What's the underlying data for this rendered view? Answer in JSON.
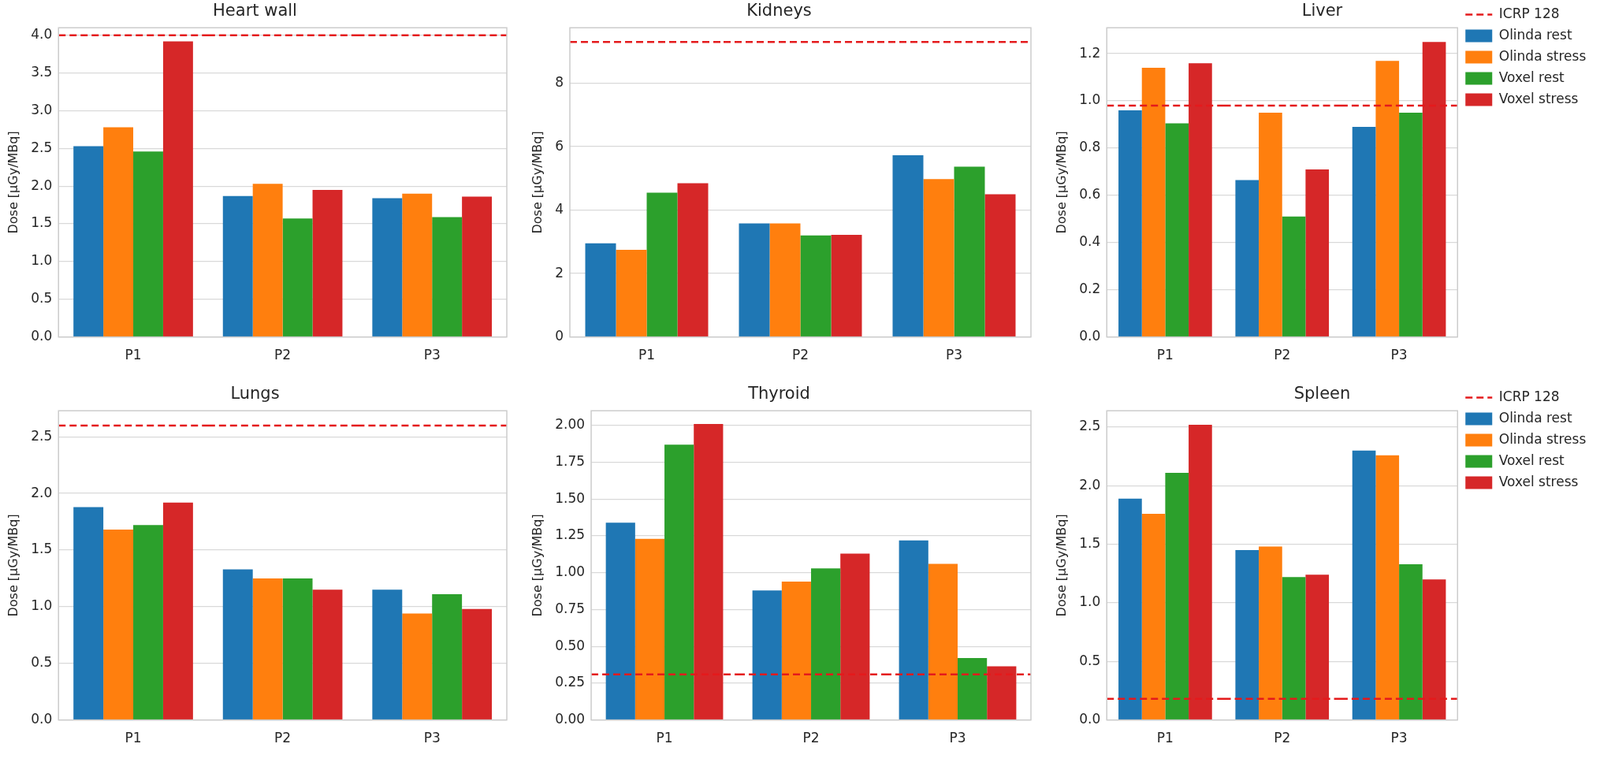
{
  "chart_data": [
    {
      "type": "bar",
      "title": "Heart wall",
      "y_label": "Dose [µGy/MBq]",
      "categories": [
        "P1",
        "P2",
        "P3"
      ],
      "series": [
        {
          "name": "ICRP 128",
          "type": "line",
          "line_style": "dashed",
          "color": "#e41a1c",
          "values": [
            4.0,
            4.0,
            4.0
          ]
        },
        {
          "name": "Olinda rest",
          "color": "#1f77b4",
          "values": [
            2.53,
            1.87,
            1.84
          ]
        },
        {
          "name": "Olinda stress",
          "color": "#ff7f0e",
          "values": [
            2.78,
            2.03,
            1.9
          ]
        },
        {
          "name": "Voxel rest",
          "color": "#2ca02c",
          "values": [
            2.46,
            1.57,
            1.59
          ]
        },
        {
          "name": "Voxel stress",
          "color": "#d62728",
          "values": [
            3.92,
            1.95,
            1.86
          ]
        }
      ],
      "ylim": [
        0,
        4.1
      ],
      "yticks": [
        {
          "value": 0,
          "label": "0.0"
        },
        {
          "value": 0.5,
          "label": "0.5"
        },
        {
          "value": 1,
          "label": "1.0"
        },
        {
          "value": 1.5,
          "label": "1.5"
        },
        {
          "value": 2,
          "label": "2.0"
        },
        {
          "value": 2.5,
          "label": "2.5"
        },
        {
          "value": 3,
          "label": "3.0"
        },
        {
          "value": 3.5,
          "label": "3.5"
        },
        {
          "value": 4,
          "label": "4.0"
        }
      ],
      "grid": true
    },
    {
      "type": "bar",
      "title": "Kidneys",
      "y_label": "Dose [µGy/MBq]",
      "categories": [
        "P1",
        "P2",
        "P3"
      ],
      "series": [
        {
          "name": "ICRP 128",
          "type": "line",
          "line_style": "dashed",
          "color": "#e41a1c",
          "values": [
            9.3,
            9.3,
            9.3
          ]
        },
        {
          "name": "Olinda rest",
          "color": "#1f77b4",
          "values": [
            2.95,
            3.58,
            5.73
          ]
        },
        {
          "name": "Olinda stress",
          "color": "#ff7f0e",
          "values": [
            2.75,
            3.58,
            4.98
          ]
        },
        {
          "name": "Voxel rest",
          "color": "#2ca02c",
          "values": [
            4.55,
            3.2,
            5.37
          ]
        },
        {
          "name": "Voxel stress",
          "color": "#d62728",
          "values": [
            4.85,
            3.22,
            4.5
          ]
        }
      ],
      "ylim": [
        0,
        9.75
      ],
      "yticks": [
        0,
        2,
        4,
        6,
        8
      ],
      "grid": true
    },
    {
      "type": "bar",
      "title": "Liver",
      "y_label": "Dose [µGy/MBq]",
      "categories": [
        "P1",
        "P2",
        "P3"
      ],
      "series": [
        {
          "name": "ICRP 128",
          "type": "line",
          "line_style": "dashed",
          "color": "#e41a1c",
          "values": [
            0.98,
            0.98,
            0.98
          ]
        },
        {
          "name": "Olinda rest",
          "color": "#1f77b4",
          "values": [
            0.96,
            0.665,
            0.89
          ]
        },
        {
          "name": "Olinda stress",
          "color": "#ff7f0e",
          "values": [
            1.14,
            0.95,
            1.17
          ]
        },
        {
          "name": "Voxel rest",
          "color": "#2ca02c",
          "values": [
            0.905,
            0.51,
            0.95
          ]
        },
        {
          "name": "Voxel stress",
          "color": "#d62728",
          "values": [
            1.16,
            0.71,
            1.25
          ]
        }
      ],
      "ylim": [
        0,
        1.31
      ],
      "yticks": [
        {
          "value": 0,
          "label": "0.0"
        },
        {
          "value": 0.2,
          "label": "0.2"
        },
        {
          "value": 0.4,
          "label": "0.4"
        },
        {
          "value": 0.6,
          "label": "0.6"
        },
        {
          "value": 0.8,
          "label": "0.8"
        },
        {
          "value": 1,
          "label": "1.0"
        },
        {
          "value": 1.2,
          "label": "1.2"
        }
      ],
      "grid": true,
      "legend": "right"
    },
    {
      "type": "bar",
      "title": "Lungs",
      "y_label": "Dose [µGy/MBq]",
      "categories": [
        "P1",
        "P2",
        "P3"
      ],
      "series": [
        {
          "name": "ICRP 128",
          "type": "line",
          "line_style": "dashed",
          "color": "#e41a1c",
          "values": [
            2.6,
            2.6,
            2.6
          ]
        },
        {
          "name": "Olinda rest",
          "color": "#1f77b4",
          "values": [
            1.88,
            1.33,
            1.15
          ]
        },
        {
          "name": "Olinda stress",
          "color": "#ff7f0e",
          "values": [
            1.68,
            1.25,
            0.94
          ]
        },
        {
          "name": "Voxel rest",
          "color": "#2ca02c",
          "values": [
            1.72,
            1.25,
            1.11
          ]
        },
        {
          "name": "Voxel stress",
          "color": "#d62728",
          "values": [
            1.92,
            1.15,
            0.98
          ]
        }
      ],
      "ylim": [
        0,
        2.73
      ],
      "yticks": [
        {
          "value": 0,
          "label": "0.0"
        },
        {
          "value": 0.5,
          "label": "0.5"
        },
        {
          "value": 1,
          "label": "1.0"
        },
        {
          "value": 1.5,
          "label": "1.5"
        },
        {
          "value": 2,
          "label": "2.0"
        },
        {
          "value": 2.5,
          "label": "2.5"
        }
      ],
      "grid": true
    },
    {
      "type": "bar",
      "title": "Thyroid",
      "y_label": "Dose [µGy/MBq]",
      "categories": [
        "P1",
        "P2",
        "P3"
      ],
      "series": [
        {
          "name": "ICRP 128",
          "type": "line",
          "line_style": "dashed",
          "color": "#e41a1c",
          "values": [
            0.31,
            0.31,
            0.31
          ]
        },
        {
          "name": "Olinda rest",
          "color": "#1f77b4",
          "values": [
            1.34,
            0.88,
            1.22
          ]
        },
        {
          "name": "Olinda stress",
          "color": "#ff7f0e",
          "values": [
            1.23,
            0.94,
            1.06
          ]
        },
        {
          "name": "Voxel rest",
          "color": "#2ca02c",
          "values": [
            1.87,
            1.03,
            0.42
          ]
        },
        {
          "name": "Voxel stress",
          "color": "#d62728",
          "values": [
            2.01,
            1.13,
            0.365
          ]
        }
      ],
      "ylim": [
        0,
        2.1
      ],
      "yticks": [
        {
          "value": 0,
          "label": "0.00"
        },
        {
          "value": 0.25,
          "label": "0.25"
        },
        {
          "value": 0.5,
          "label": "0.50"
        },
        {
          "value": 0.75,
          "label": "0.75"
        },
        {
          "value": 1,
          "label": "1.00"
        },
        {
          "value": 1.25,
          "label": "1.25"
        },
        {
          "value": 1.5,
          "label": "1.50"
        },
        {
          "value": 1.75,
          "label": "1.75"
        },
        {
          "value": 2,
          "label": "2.00"
        }
      ],
      "grid": true
    },
    {
      "type": "bar",
      "title": "Spleen",
      "y_label": "Dose [µGy/MBq]",
      "categories": [
        "P1",
        "P2",
        "P3"
      ],
      "series": [
        {
          "name": "ICRP 128",
          "type": "line",
          "line_style": "dashed",
          "color": "#e41a1c",
          "values": [
            0.18,
            0.18,
            0.18
          ]
        },
        {
          "name": "Olinda rest",
          "color": "#1f77b4",
          "values": [
            1.89,
            1.45,
            2.3
          ]
        },
        {
          "name": "Olinda stress",
          "color": "#ff7f0e",
          "values": [
            1.76,
            1.48,
            2.26
          ]
        },
        {
          "name": "Voxel rest",
          "color": "#2ca02c",
          "values": [
            2.11,
            1.22,
            1.33
          ]
        },
        {
          "name": "Voxel stress",
          "color": "#d62728",
          "values": [
            2.52,
            1.24,
            1.2
          ]
        }
      ],
      "ylim": [
        0,
        2.64
      ],
      "yticks": [
        {
          "value": 0,
          "label": "0.0"
        },
        {
          "value": 0.5,
          "label": "0.5"
        },
        {
          "value": 1,
          "label": "1.0"
        },
        {
          "value": 1.5,
          "label": "1.5"
        },
        {
          "value": 2,
          "label": "2.0"
        },
        {
          "value": 2.5,
          "label": "2.5"
        }
      ],
      "grid": true,
      "legend": "right"
    }
  ]
}
